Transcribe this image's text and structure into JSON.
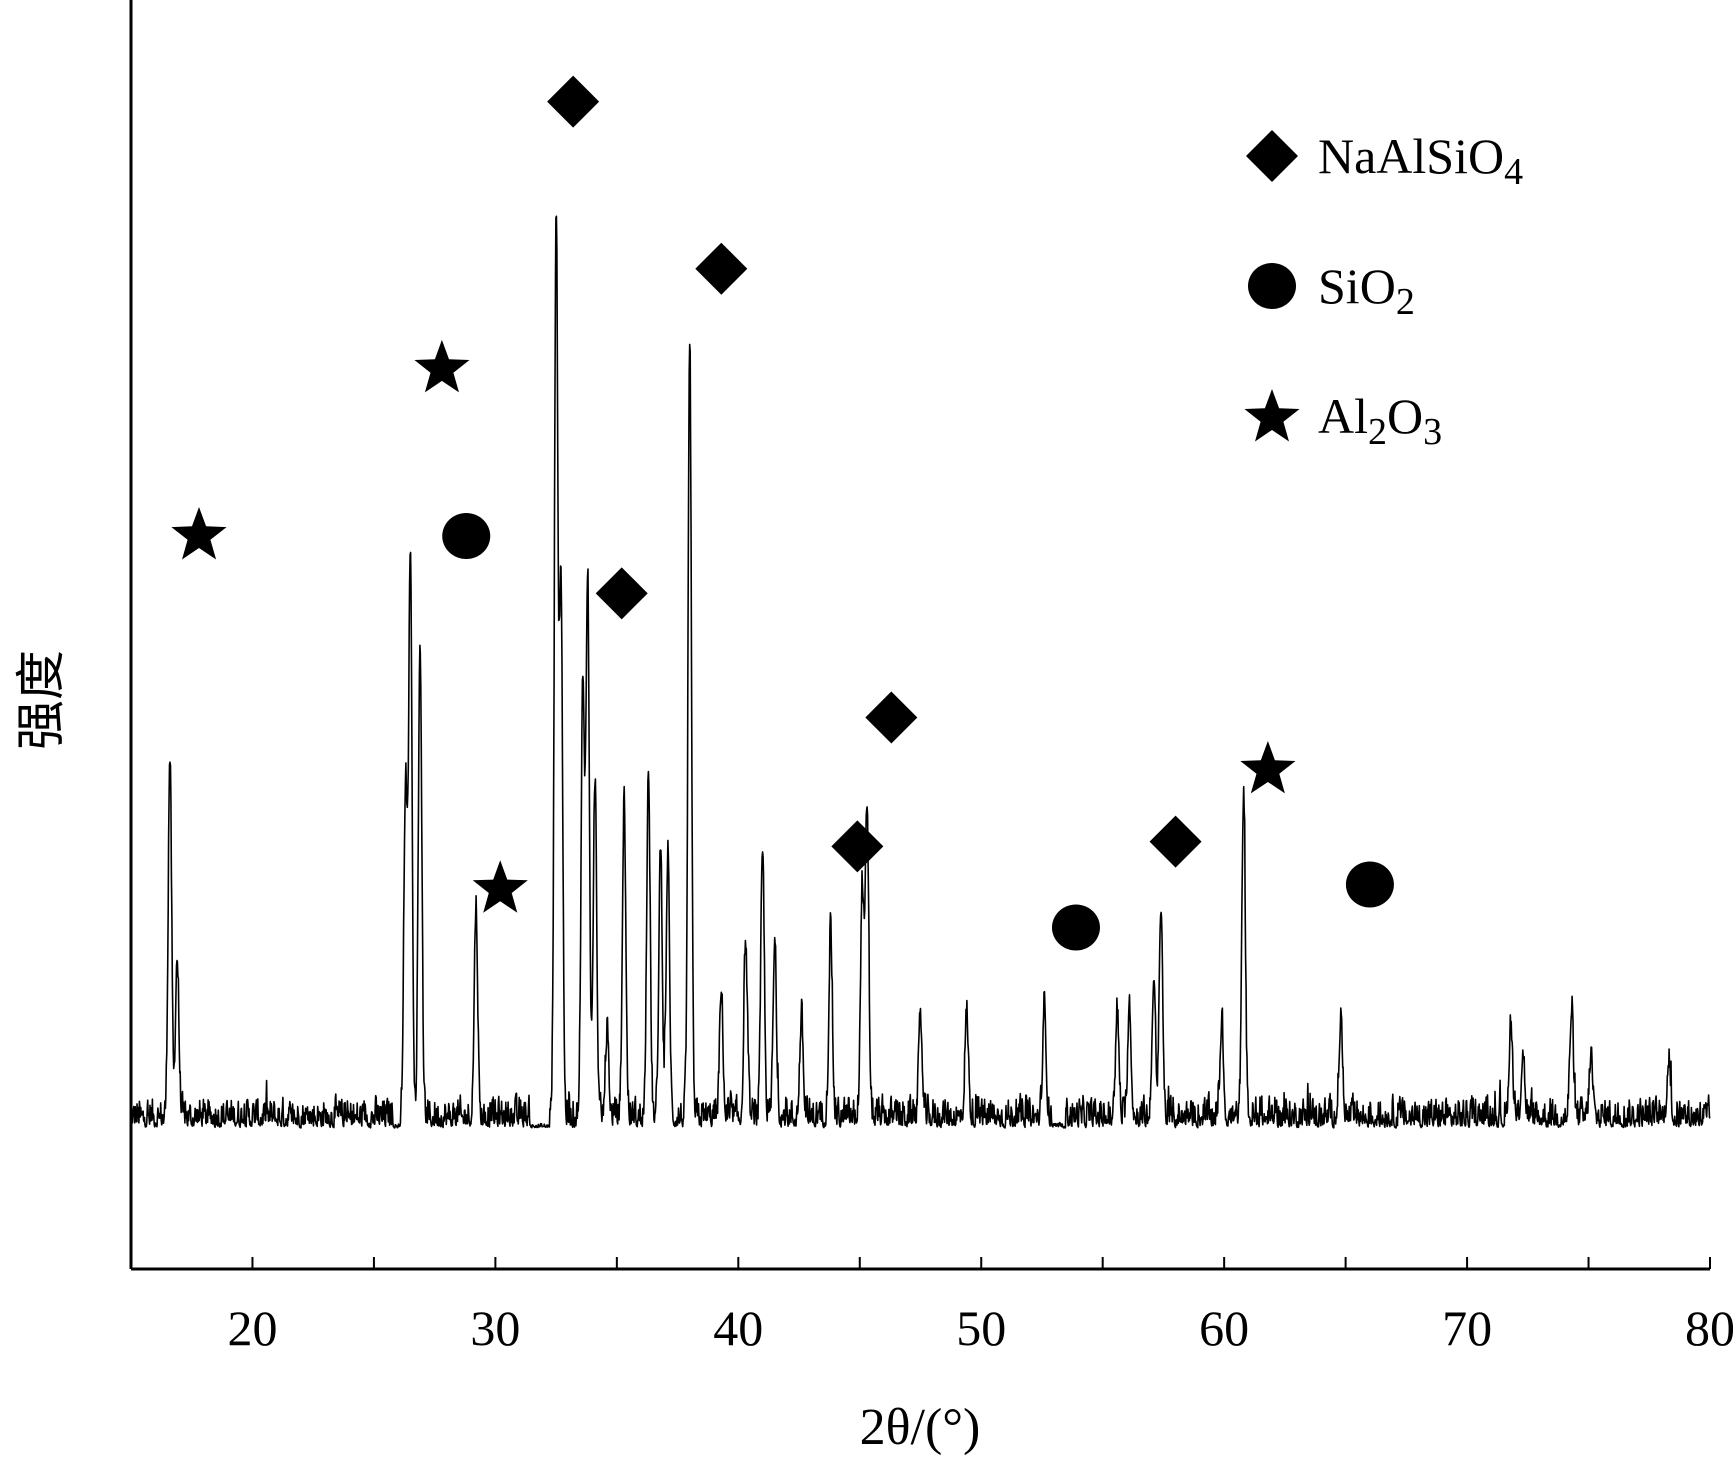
{
  "chart_data": {
    "type": "line",
    "title": "",
    "xlabel": "2θ/(°)",
    "ylabel": "强度",
    "xlim": [
      15,
      80
    ],
    "x_ticks": [
      20,
      30,
      40,
      50,
      60,
      70,
      80
    ],
    "x_tick_labels": [
      "20",
      "30",
      "40",
      "50",
      "60",
      "70",
      "80"
    ],
    "y_ticks": [],
    "grid": false,
    "legend_position": "top-right",
    "legend": [
      {
        "symbol": "diamond",
        "parts": [
          {
            "t": "NaAlSiO",
            "sub": false
          },
          {
            "t": "4",
            "sub": true
          }
        ]
      },
      {
        "symbol": "circle",
        "parts": [
          {
            "t": "SiO",
            "sub": false
          },
          {
            "t": "2",
            "sub": true
          }
        ]
      },
      {
        "symbol": "star",
        "parts": [
          {
            "t": "Al",
            "sub": false
          },
          {
            "t": "2",
            "sub": true
          },
          {
            "t": "O",
            "sub": false
          },
          {
            "t": "3",
            "sub": true
          }
        ]
      }
    ],
    "baseline": 0,
    "noise_amplitude": 80,
    "peaks": [
      {
        "x": 16.6,
        "y": 760
      },
      {
        "x": 16.9,
        "y": 340
      },
      {
        "x": 26.3,
        "y": 690
      },
      {
        "x": 26.5,
        "y": 1190
      },
      {
        "x": 26.9,
        "y": 1000
      },
      {
        "x": 29.2,
        "y": 445
      },
      {
        "x": 32.5,
        "y": 1900
      },
      {
        "x": 32.7,
        "y": 1130
      },
      {
        "x": 33.6,
        "y": 910
      },
      {
        "x": 33.8,
        "y": 1130
      },
      {
        "x": 34.1,
        "y": 710
      },
      {
        "x": 34.6,
        "y": 180
      },
      {
        "x": 35.3,
        "y": 665
      },
      {
        "x": 36.3,
        "y": 740
      },
      {
        "x": 36.8,
        "y": 570
      },
      {
        "x": 37.1,
        "y": 550
      },
      {
        "x": 38.0,
        "y": 1630
      },
      {
        "x": 39.3,
        "y": 260
      },
      {
        "x": 40.3,
        "y": 370
      },
      {
        "x": 41.0,
        "y": 560
      },
      {
        "x": 41.5,
        "y": 360
      },
      {
        "x": 42.6,
        "y": 210
      },
      {
        "x": 43.8,
        "y": 400
      },
      {
        "x": 45.1,
        "y": 480
      },
      {
        "x": 45.3,
        "y": 650
      },
      {
        "x": 47.5,
        "y": 200
      },
      {
        "x": 49.4,
        "y": 220
      },
      {
        "x": 52.6,
        "y": 230
      },
      {
        "x": 55.6,
        "y": 220
      },
      {
        "x": 56.1,
        "y": 240
      },
      {
        "x": 57.1,
        "y": 290
      },
      {
        "x": 57.4,
        "y": 450
      },
      {
        "x": 59.9,
        "y": 200
      },
      {
        "x": 60.8,
        "y": 680
      },
      {
        "x": 64.8,
        "y": 210
      },
      {
        "x": 71.8,
        "y": 200
      },
      {
        "x": 72.3,
        "y": 140
      },
      {
        "x": 74.3,
        "y": 230
      },
      {
        "x": 75.1,
        "y": 130
      },
      {
        "x": 78.3,
        "y": 120
      }
    ],
    "markers": [
      {
        "symbol": "star",
        "x": 17.8,
        "y": 1240
      },
      {
        "symbol": "star",
        "x": 27.8,
        "y": 1590
      },
      {
        "symbol": "circle",
        "x": 28.8,
        "y": 1240
      },
      {
        "symbol": "star",
        "x": 30.2,
        "y": 500
      },
      {
        "symbol": "diamond",
        "x": 33.2,
        "y": 2150
      },
      {
        "symbol": "diamond",
        "x": 35.2,
        "y": 1120
      },
      {
        "symbol": "diamond",
        "x": 39.3,
        "y": 1800
      },
      {
        "symbol": "diamond",
        "x": 44.9,
        "y": 590
      },
      {
        "symbol": "diamond",
        "x": 46.3,
        "y": 860
      },
      {
        "symbol": "circle",
        "x": 53.9,
        "y": 420
      },
      {
        "symbol": "diamond",
        "x": 58.0,
        "y": 600
      },
      {
        "symbol": "star",
        "x": 61.8,
        "y": 750
      },
      {
        "symbol": "circle",
        "x": 66.0,
        "y": 510
      }
    ]
  }
}
